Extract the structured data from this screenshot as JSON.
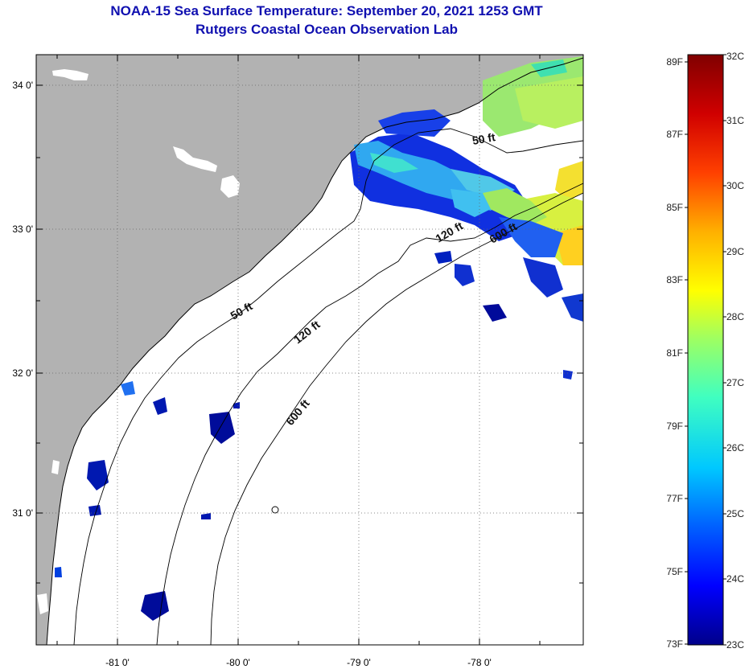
{
  "title": "NOAA-15 Sea Surface Temperature:  September 20, 2021 1253 GMT",
  "subtitle": "Rutgers Coastal Ocean Observation Lab",
  "map": {
    "lon_range": [
      -81.65,
      -77.1
    ],
    "lat_range": [
      30.1,
      34.2
    ],
    "lon_ticks": [
      {
        "value": -81,
        "label": "-81 0'"
      },
      {
        "value": -80,
        "label": "-80 0'"
      },
      {
        "value": -79,
        "label": "-79 0'"
      },
      {
        "value": -78,
        "label": "-78 0'"
      }
    ],
    "lat_ticks": [
      {
        "value": 34,
        "label": "34 0'"
      },
      {
        "value": 33,
        "label": "33 0'"
      },
      {
        "value": 32,
        "label": "32 0'"
      },
      {
        "value": 31,
        "label": "31 0'"
      }
    ],
    "contour_labels": [
      {
        "text": "50 ft",
        "lon": -77.92,
        "lat": 33.6
      },
      {
        "text": "120 ft",
        "lon": -78.3,
        "lat": 33.0
      },
      {
        "text": "600 ft",
        "lon": -77.92,
        "lat": 32.95
      },
      {
        "text": "50 ft",
        "lon": -80.1,
        "lat": 32.5
      },
      {
        "text": "120 ft",
        "lon": -79.45,
        "lat": 32.3
      },
      {
        "text": "600 ft",
        "lon": -79.55,
        "lat": 31.7
      }
    ],
    "colors": {
      "land": "#b2b2b2",
      "water_nodata": "#ffffff",
      "grid": "#666666"
    }
  },
  "colorbar": {
    "celsius_labels": [
      "32C",
      "31C",
      "30C",
      "29C",
      "28C",
      "27C",
      "26C",
      "25C",
      "24C",
      "23C"
    ],
    "fahrenheit_labels": [
      "89F",
      "87F",
      "85F",
      "83F",
      "81F",
      "79F",
      "77F",
      "75F",
      "73F"
    ],
    "range_c": [
      23,
      32
    ],
    "range_f": [
      73,
      89
    ],
    "stops": [
      "#00008a",
      "#0000ff",
      "#0060ff",
      "#00c8ff",
      "#40ffc0",
      "#a0ff60",
      "#ffff00",
      "#ffb000",
      "#ff4000",
      "#d00000",
      "#800000"
    ]
  }
}
